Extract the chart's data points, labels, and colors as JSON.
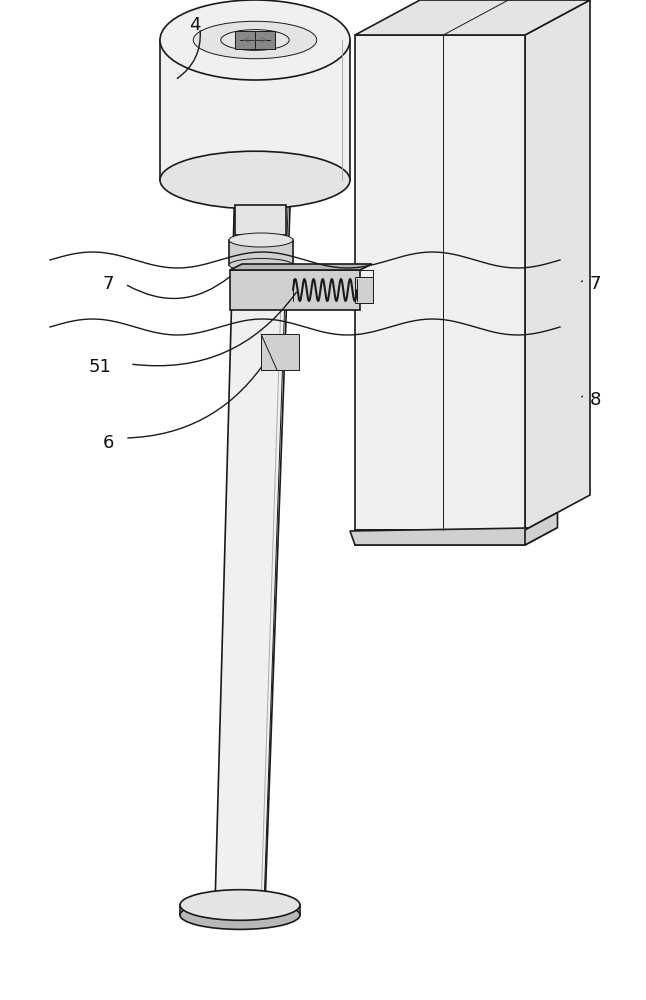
{
  "bg": "#ffffff",
  "lc": "#1a1a1a",
  "lw": 1.2,
  "lw_thin": 0.7,
  "fill_white": "#ffffff",
  "fill_vlight": "#f0f0f0",
  "fill_light": "#e4e4e4",
  "fill_mid": "#d0d0d0",
  "fill_dark": "#b8b8b8",
  "figsize": [
    6.46,
    10.0
  ],
  "dpi": 100
}
